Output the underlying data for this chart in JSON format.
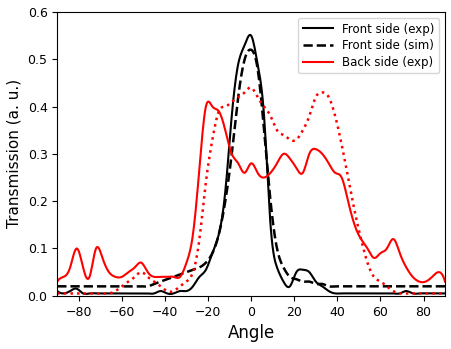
{
  "title": "",
  "xlabel": "Angle",
  "ylabel": "Transmission (a. u.)",
  "xlim": [
    -90,
    90
  ],
  "ylim": [
    0.0,
    0.6
  ],
  "yticks": [
    0.0,
    0.1,
    0.2,
    0.3,
    0.4,
    0.5,
    0.6
  ],
  "xticks": [
    -80,
    -60,
    -40,
    -20,
    0,
    20,
    40,
    60,
    80
  ],
  "legend": [
    {
      "label": "Front side (exp)",
      "color": "black",
      "ls": "-",
      "lw": 1.5
    },
    {
      "label": "Front side (sim)",
      "color": "black",
      "ls": "--",
      "lw": 1.8
    },
    {
      "label": "Back side (exp)",
      "color": "red",
      "ls": "-",
      "lw": 1.5
    },
    {
      "label": "",
      "color": "red",
      "ls": ":",
      "lw": 1.8
    }
  ],
  "front_exp_x": [
    -90,
    -87,
    -84,
    -81,
    -78,
    -75,
    -72,
    -69,
    -66,
    -63,
    -60,
    -57,
    -54,
    -51,
    -48,
    -45,
    -42,
    -39,
    -36,
    -33,
    -30,
    -27,
    -24,
    -21,
    -18,
    -15,
    -12,
    -9,
    -6,
    -3,
    0,
    3,
    6,
    9,
    12,
    15,
    18,
    21,
    24,
    27,
    30,
    33,
    36,
    39,
    42,
    45,
    48,
    51,
    54,
    57,
    60,
    63,
    66,
    69,
    72,
    75,
    78,
    81,
    84,
    87,
    90
  ],
  "front_exp_y": [
    0.01,
    0.005,
    0.01,
    0.015,
    0.005,
    0.005,
    0.005,
    0.005,
    0.005,
    0.005,
    0.005,
    0.005,
    0.005,
    0.005,
    0.005,
    0.005,
    0.01,
    0.005,
    0.005,
    0.01,
    0.01,
    0.02,
    0.04,
    0.055,
    0.09,
    0.13,
    0.22,
    0.38,
    0.49,
    0.53,
    0.55,
    0.49,
    0.38,
    0.15,
    0.06,
    0.03,
    0.02,
    0.05,
    0.055,
    0.05,
    0.03,
    0.02,
    0.01,
    0.005,
    0.005,
    0.005,
    0.005,
    0.005,
    0.005,
    0.005,
    0.005,
    0.005,
    0.005,
    0.005,
    0.01,
    0.005,
    0.005,
    0.005,
    0.005,
    0.005,
    0.005
  ],
  "front_sim_x": [
    -90,
    -87,
    -84,
    -81,
    -78,
    -75,
    -72,
    -69,
    -66,
    -63,
    -60,
    -57,
    -54,
    -51,
    -48,
    -45,
    -42,
    -39,
    -36,
    -33,
    -30,
    -27,
    -24,
    -21,
    -18,
    -15,
    -12,
    -9,
    -6,
    -3,
    0,
    3,
    6,
    9,
    12,
    15,
    18,
    21,
    24,
    27,
    30,
    33,
    36,
    39,
    42,
    45,
    48,
    51,
    54,
    57,
    60,
    63,
    66,
    69,
    72,
    75,
    78,
    81,
    84,
    87,
    90
  ],
  "front_sim_y": [
    0.02,
    0.02,
    0.02,
    0.02,
    0.02,
    0.02,
    0.02,
    0.02,
    0.02,
    0.02,
    0.02,
    0.02,
    0.02,
    0.02,
    0.02,
    0.025,
    0.03,
    0.035,
    0.04,
    0.045,
    0.05,
    0.055,
    0.06,
    0.07,
    0.09,
    0.13,
    0.2,
    0.3,
    0.42,
    0.5,
    0.52,
    0.48,
    0.35,
    0.2,
    0.1,
    0.06,
    0.04,
    0.035,
    0.03,
    0.03,
    0.025,
    0.025,
    0.02,
    0.02,
    0.02,
    0.02,
    0.02,
    0.02,
    0.02,
    0.02,
    0.02,
    0.02,
    0.02,
    0.02,
    0.02,
    0.02,
    0.02,
    0.02,
    0.02,
    0.02,
    0.02
  ],
  "back_exp_x": [
    -90,
    -87,
    -84,
    -81,
    -78,
    -75,
    -72,
    -69,
    -66,
    -63,
    -60,
    -57,
    -54,
    -51,
    -48,
    -45,
    -42,
    -39,
    -36,
    -33,
    -30,
    -27,
    -24,
    -21,
    -18,
    -15,
    -12,
    -9,
    -6,
    -3,
    0,
    3,
    6,
    9,
    12,
    15,
    18,
    21,
    24,
    27,
    30,
    33,
    36,
    39,
    42,
    45,
    48,
    51,
    54,
    57,
    60,
    63,
    66,
    69,
    72,
    75,
    78,
    81,
    84,
    87,
    90
  ],
  "back_exp_y": [
    0.03,
    0.04,
    0.06,
    0.1,
    0.06,
    0.04,
    0.1,
    0.08,
    0.05,
    0.04,
    0.04,
    0.05,
    0.06,
    0.07,
    0.05,
    0.04,
    0.04,
    0.04,
    0.04,
    0.04,
    0.07,
    0.13,
    0.27,
    0.4,
    0.4,
    0.39,
    0.35,
    0.3,
    0.28,
    0.26,
    0.28,
    0.26,
    0.25,
    0.26,
    0.28,
    0.3,
    0.29,
    0.27,
    0.26,
    0.3,
    0.31,
    0.3,
    0.28,
    0.26,
    0.25,
    0.2,
    0.15,
    0.12,
    0.1,
    0.08,
    0.09,
    0.1,
    0.12,
    0.09,
    0.06,
    0.04,
    0.03,
    0.03,
    0.04,
    0.05,
    0.03
  ],
  "back_sim_x": [
    -90,
    -87,
    -84,
    -81,
    -78,
    -75,
    -72,
    -69,
    -66,
    -63,
    -60,
    -57,
    -54,
    -51,
    -48,
    -45,
    -42,
    -39,
    -36,
    -33,
    -30,
    -27,
    -24,
    -21,
    -18,
    -15,
    -12,
    -9,
    -6,
    -3,
    0,
    3,
    6,
    9,
    12,
    15,
    18,
    21,
    24,
    27,
    30,
    33,
    36,
    39,
    42,
    45,
    48,
    51,
    54,
    57,
    60,
    63,
    66,
    69,
    72,
    75,
    78,
    81,
    84,
    87,
    90
  ],
  "back_sim_y": [
    0.005,
    0.005,
    0.005,
    0.005,
    0.005,
    0.005,
    0.005,
    0.005,
    0.005,
    0.01,
    0.02,
    0.03,
    0.04,
    0.05,
    0.04,
    0.03,
    0.02,
    0.01,
    0.01,
    0.02,
    0.03,
    0.05,
    0.12,
    0.24,
    0.33,
    0.39,
    0.4,
    0.41,
    0.42,
    0.43,
    0.44,
    0.42,
    0.4,
    0.38,
    0.35,
    0.34,
    0.33,
    0.33,
    0.35,
    0.38,
    0.42,
    0.43,
    0.42,
    0.38,
    0.32,
    0.25,
    0.18,
    0.12,
    0.07,
    0.04,
    0.03,
    0.02,
    0.01,
    0.005,
    0.005,
    0.005,
    0.005,
    0.005,
    0.005,
    0.005,
    0.005
  ]
}
